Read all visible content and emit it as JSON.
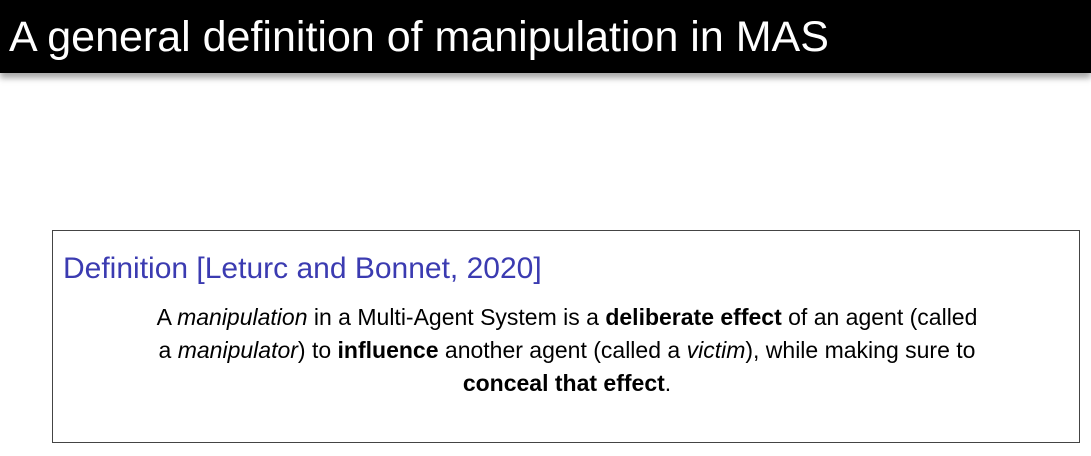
{
  "slide": {
    "title": "A general definition of manipulation in MAS"
  },
  "definition": {
    "heading": "Definition [Leturc and Bonnet, 2020]",
    "line1": {
      "a": "A ",
      "manipulation": "manipulation",
      "b": " in a Multi-Agent System is a ",
      "deliberate_effect": "deliberate effect",
      "c": " of an agent (called"
    },
    "line2": {
      "a": "a ",
      "manipulator": "manipulator",
      "b": ") to ",
      "influence": "influence",
      "c": " another agent (called a ",
      "victim": "victim",
      "d": "), while making sure to"
    },
    "line3": {
      "conceal": "conceal that effect",
      "period": "."
    }
  }
}
